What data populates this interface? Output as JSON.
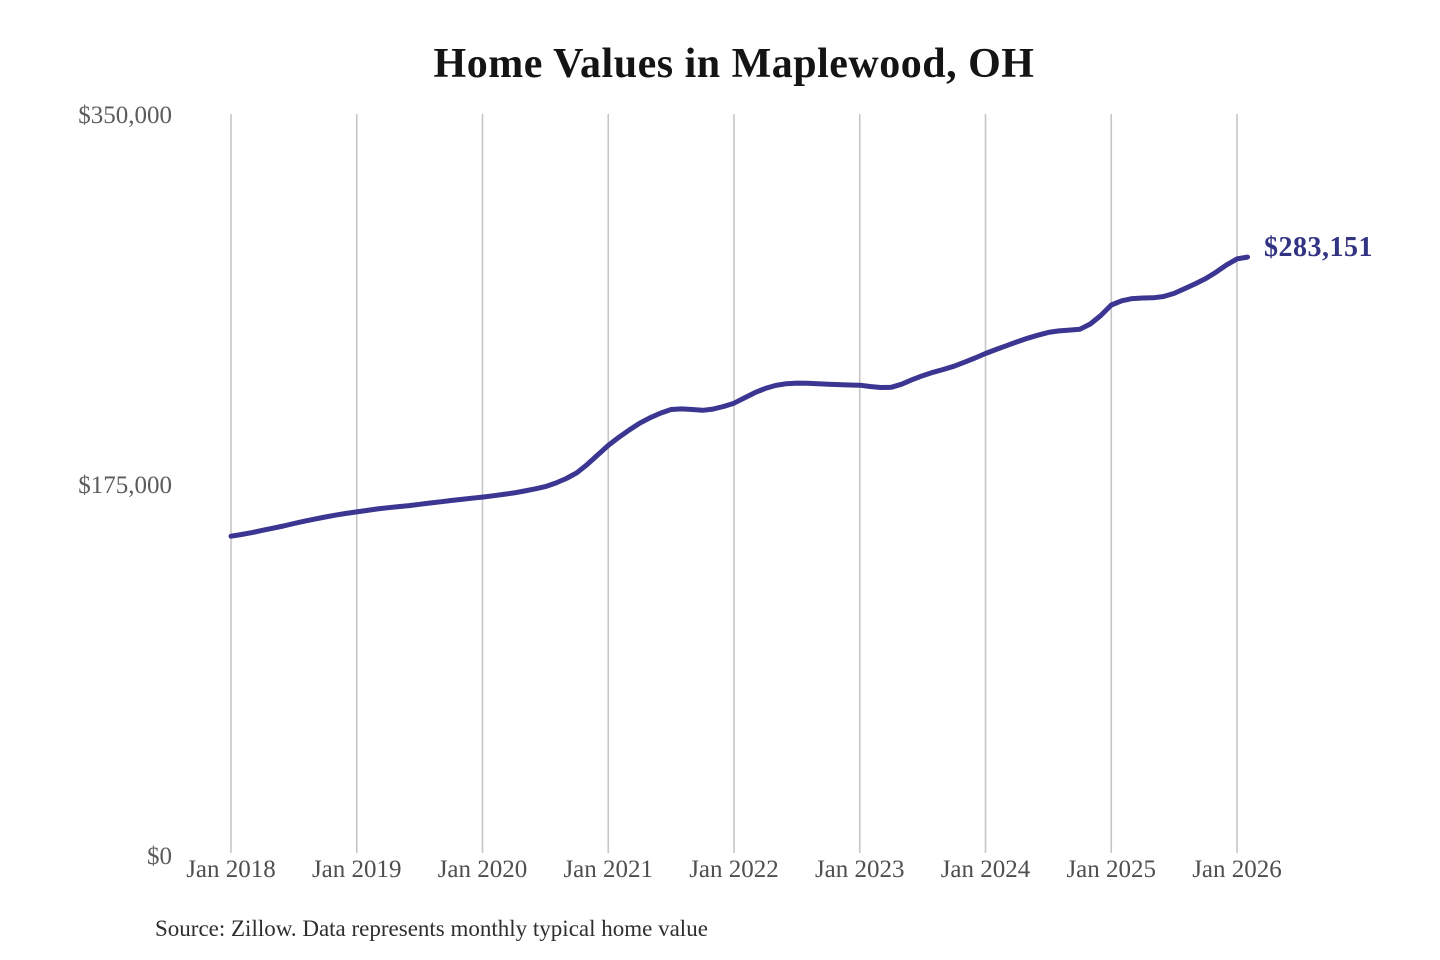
{
  "title": "Home Values in Maplewood, OH",
  "source": "Source: Zillow. Data represents monthly typical home value",
  "colors": {
    "line": "#3b3691",
    "value_label": "#333383",
    "gridline": "#c6c6c6"
  },
  "chart_data": {
    "type": "line",
    "title": "Home Values in Maplewood, OH",
    "xlabel": "",
    "ylabel": "",
    "x_tick_labels": [
      "Jan 2018",
      "Jan 2019",
      "Jan 2020",
      "Jan 2021",
      "Jan 2022",
      "Jan 2023",
      "Jan 2024",
      "Jan 2025",
      "Jan 2026"
    ],
    "y_tick_labels": [
      "$0",
      "$175,000",
      "$350,000"
    ],
    "y_ticks": [
      0,
      175000,
      350000
    ],
    "ylim": [
      0,
      350000
    ],
    "grid": "vertical-only",
    "legend": "none",
    "final_value": 283151,
    "final_value_label": "$283,151",
    "series": [
      {
        "name": "Typical home value",
        "start": "2018-01",
        "interval": "monthly",
        "values": [
          151000,
          151800,
          152700,
          153800,
          154800,
          155800,
          157000,
          158100,
          159100,
          160100,
          161000,
          161800,
          162500,
          163200,
          163900,
          164500,
          165000,
          165500,
          166100,
          166700,
          167300,
          167900,
          168400,
          169000,
          169500,
          170100,
          170800,
          171500,
          172400,
          173400,
          174500,
          176200,
          178300,
          181000,
          185000,
          189500,
          194000,
          197800,
          201300,
          204500,
          207100,
          209300,
          211000,
          211300,
          211000,
          210600,
          211200,
          212400,
          214000,
          216500,
          219000,
          221000,
          222400,
          223200,
          223500,
          223400,
          223200,
          223000,
          222800,
          222600,
          222500,
          221900,
          221400,
          221500,
          223000,
          225100,
          227000,
          228600,
          230000,
          231500,
          233400,
          235400,
          237500,
          239400,
          241200,
          243000,
          244700,
          246200,
          247500,
          248200,
          248600,
          249000,
          251500,
          255500,
          260500,
          262500,
          263500,
          263800,
          263900,
          264500,
          266000,
          268200,
          270500,
          273000,
          276000,
          279500,
          282300,
          283151
        ]
      }
    ]
  }
}
